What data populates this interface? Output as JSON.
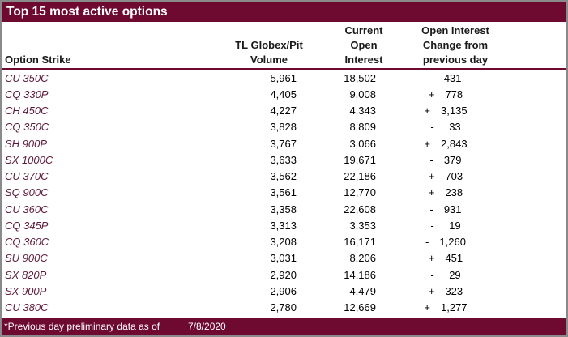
{
  "title": "Top 15 most active options",
  "colors": {
    "maroon": "#6e0a2f",
    "strike_text": "#5f1a3a"
  },
  "columns": {
    "strike_label": "Option Strike",
    "volume_lines": [
      "TL Globex/Pit",
      "Volume"
    ],
    "open_interest_lines": [
      "Current",
      "Open",
      "Interest"
    ],
    "change_lines": [
      "Open Interest",
      "Change from",
      "previous day"
    ]
  },
  "rows": [
    {
      "strike": "CU 350C",
      "volume": "5,961",
      "open_interest": "18,502",
      "change_sign": "-",
      "change_value": "431"
    },
    {
      "strike": "CQ 330P",
      "volume": "4,405",
      "open_interest": "9,008",
      "change_sign": "+",
      "change_value": "778"
    },
    {
      "strike": "CH 450C",
      "volume": "4,227",
      "open_interest": "4,343",
      "change_sign": "+",
      "change_value": "3,135"
    },
    {
      "strike": "CQ 350C",
      "volume": "3,828",
      "open_interest": "8,809",
      "change_sign": "-",
      "change_value": "33"
    },
    {
      "strike": "SH 900P",
      "volume": "3,767",
      "open_interest": "3,066",
      "change_sign": "+",
      "change_value": "2,843"
    },
    {
      "strike": "SX 1000C",
      "volume": "3,633",
      "open_interest": "19,671",
      "change_sign": "-",
      "change_value": "379"
    },
    {
      "strike": "CU 370C",
      "volume": "3,562",
      "open_interest": "22,186",
      "change_sign": "+",
      "change_value": "703"
    },
    {
      "strike": "SQ 900C",
      "volume": "3,561",
      "open_interest": "12,770",
      "change_sign": "+",
      "change_value": "238"
    },
    {
      "strike": "CU 360C",
      "volume": "3,358",
      "open_interest": "22,608",
      "change_sign": "-",
      "change_value": "931"
    },
    {
      "strike": "CQ 345P",
      "volume": "3,313",
      "open_interest": "3,353",
      "change_sign": "-",
      "change_value": "19"
    },
    {
      "strike": "CQ 360C",
      "volume": "3,208",
      "open_interest": "16,171",
      "change_sign": "-",
      "change_value": "1,260"
    },
    {
      "strike": "SU 900C",
      "volume": "3,031",
      "open_interest": "8,206",
      "change_sign": "+",
      "change_value": "451"
    },
    {
      "strike": "SX 820P",
      "volume": "2,920",
      "open_interest": "14,186",
      "change_sign": "-",
      "change_value": "29"
    },
    {
      "strike": "SX 900P",
      "volume": "2,906",
      "open_interest": "4,479",
      "change_sign": "+",
      "change_value": "323"
    },
    {
      "strike": "CU 380C",
      "volume": "2,780",
      "open_interest": "12,669",
      "change_sign": "+",
      "change_value": "1,277"
    }
  ],
  "footer": {
    "note": "*Previous day preliminary data as of",
    "date": "7/8/2020"
  }
}
